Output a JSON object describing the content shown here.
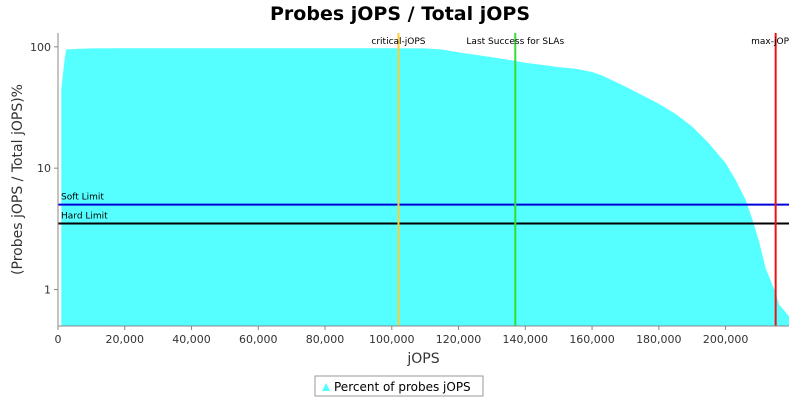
{
  "chart_data": {
    "type": "area",
    "title": "Probes jOPS / Total jOPS",
    "xlabel": "jOPS",
    "ylabel": "(Probes jOPS / Total jOPS)%",
    "y_scale": "log",
    "xlim": [
      0,
      219000
    ],
    "ylim": [
      0.5,
      130
    ],
    "x_ticks": [
      0,
      20000,
      40000,
      60000,
      80000,
      100000,
      120000,
      140000,
      160000,
      180000,
      200000
    ],
    "x_tick_labels": [
      "0",
      "20,000",
      "40,000",
      "60,000",
      "80,000",
      "100,000",
      "120,000",
      "140,000",
      "160,000",
      "180,000",
      "200,000"
    ],
    "y_ticks": [
      1,
      10,
      100
    ],
    "y_tick_labels": [
      "1",
      "10",
      "100"
    ],
    "grid": false,
    "legend_position": "bottom",
    "series": [
      {
        "name": "Percent of probes jOPS",
        "color": "#55ffff",
        "x": [
          1000,
          2000,
          2500,
          5000,
          10000,
          20000,
          40000,
          60000,
          80000,
          100000,
          110000,
          115000,
          120000,
          125000,
          130000,
          135000,
          140000,
          145000,
          150000,
          155000,
          160000,
          163000,
          166000,
          170000,
          175000,
          180000,
          185000,
          190000,
          195000,
          200000,
          203000,
          206000,
          208000,
          210000,
          212000,
          214000,
          215000,
          216000,
          217000,
          219000
        ],
        "y": [
          45,
          80,
          95,
          96,
          97,
          97.5,
          97.5,
          97.5,
          97.5,
          97.5,
          97,
          95,
          90,
          86,
          82,
          78,
          74,
          71,
          68,
          66,
          62,
          58,
          53,
          47,
          40,
          34,
          28,
          22,
          16,
          11,
          8,
          5.5,
          3.8,
          2.5,
          1.5,
          1.1,
          0.95,
          0.75,
          0.7,
          0.6
        ]
      }
    ],
    "vertical_markers": [
      {
        "label": "critical-jOPS",
        "x": 102000,
        "color": "#ffcc33"
      },
      {
        "label": "Last Success for SLAs",
        "x": 137000,
        "color": "#33dd33"
      },
      {
        "label": "max-jOP",
        "x": 215000,
        "color": "#ee1111"
      }
    ],
    "horizontal_markers": [
      {
        "label": "Soft Limit",
        "y": 5,
        "color": "#0000dd"
      },
      {
        "label": "Hard Limit",
        "y": 3.5,
        "color": "#000000"
      }
    ]
  }
}
